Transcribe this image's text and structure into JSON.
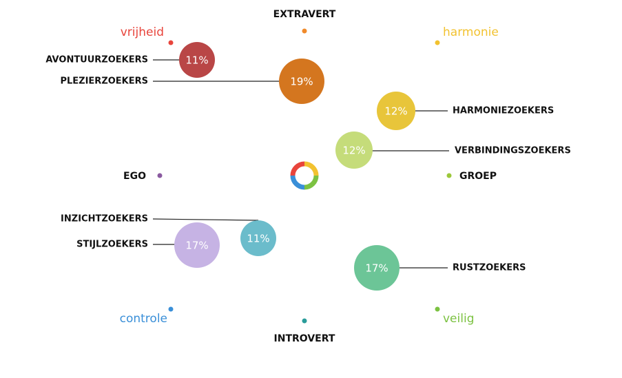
{
  "axes": {
    "top": "EXTRAVERT",
    "bottom": "INTROVERT",
    "left": "EGO",
    "right": "GROEP"
  },
  "corners": {
    "top_left": "vrijheid",
    "top_right": "harmonie",
    "bottom_left": "controle",
    "bottom_right": "veilig"
  },
  "segments": [
    {
      "label": "AVONTUURZOEKERS",
      "share": "11%"
    },
    {
      "label": "PLEZIERZOEKERS",
      "share": "19%"
    },
    {
      "label": "HARMONIEZOEKERS",
      "share": "12%"
    },
    {
      "label": "VERBINDINGSZOEKERS",
      "share": "12%"
    },
    {
      "label": "INZICHTZOEKERS",
      "share": "11%"
    },
    {
      "label": "STIJLZOEKERS",
      "share": "17%"
    },
    {
      "label": "RUSTZOEKERS",
      "share": "17%"
    }
  ]
}
